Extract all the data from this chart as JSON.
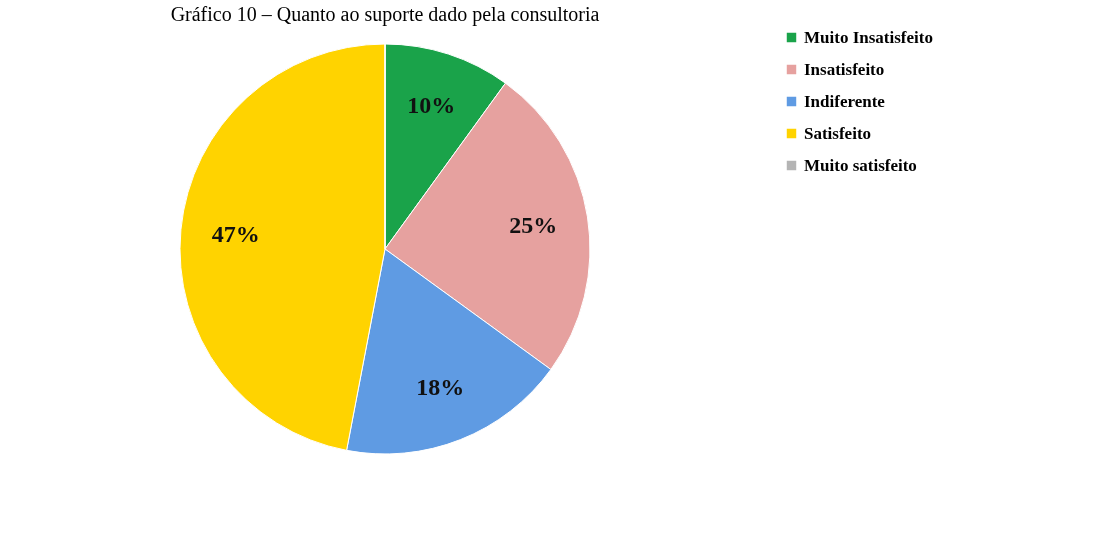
{
  "chart_data": {
    "type": "pie",
    "title": "Gráfico 10 – Quanto ao suporte dado pela consultoria",
    "categories": [
      "Muito Insatisfeito",
      "Insatisfeito",
      "Indiferente",
      "Satisfeito",
      "Muito satisfeito"
    ],
    "values": [
      10,
      25,
      18,
      47,
      0
    ],
    "colors": [
      "#1aa34a",
      "#e6a19f",
      "#5f9be3",
      "#ffd300",
      "#b4b4b4"
    ],
    "value_labels": [
      "10%",
      "25%",
      "18%",
      "47%",
      null
    ],
    "legend": "right"
  }
}
